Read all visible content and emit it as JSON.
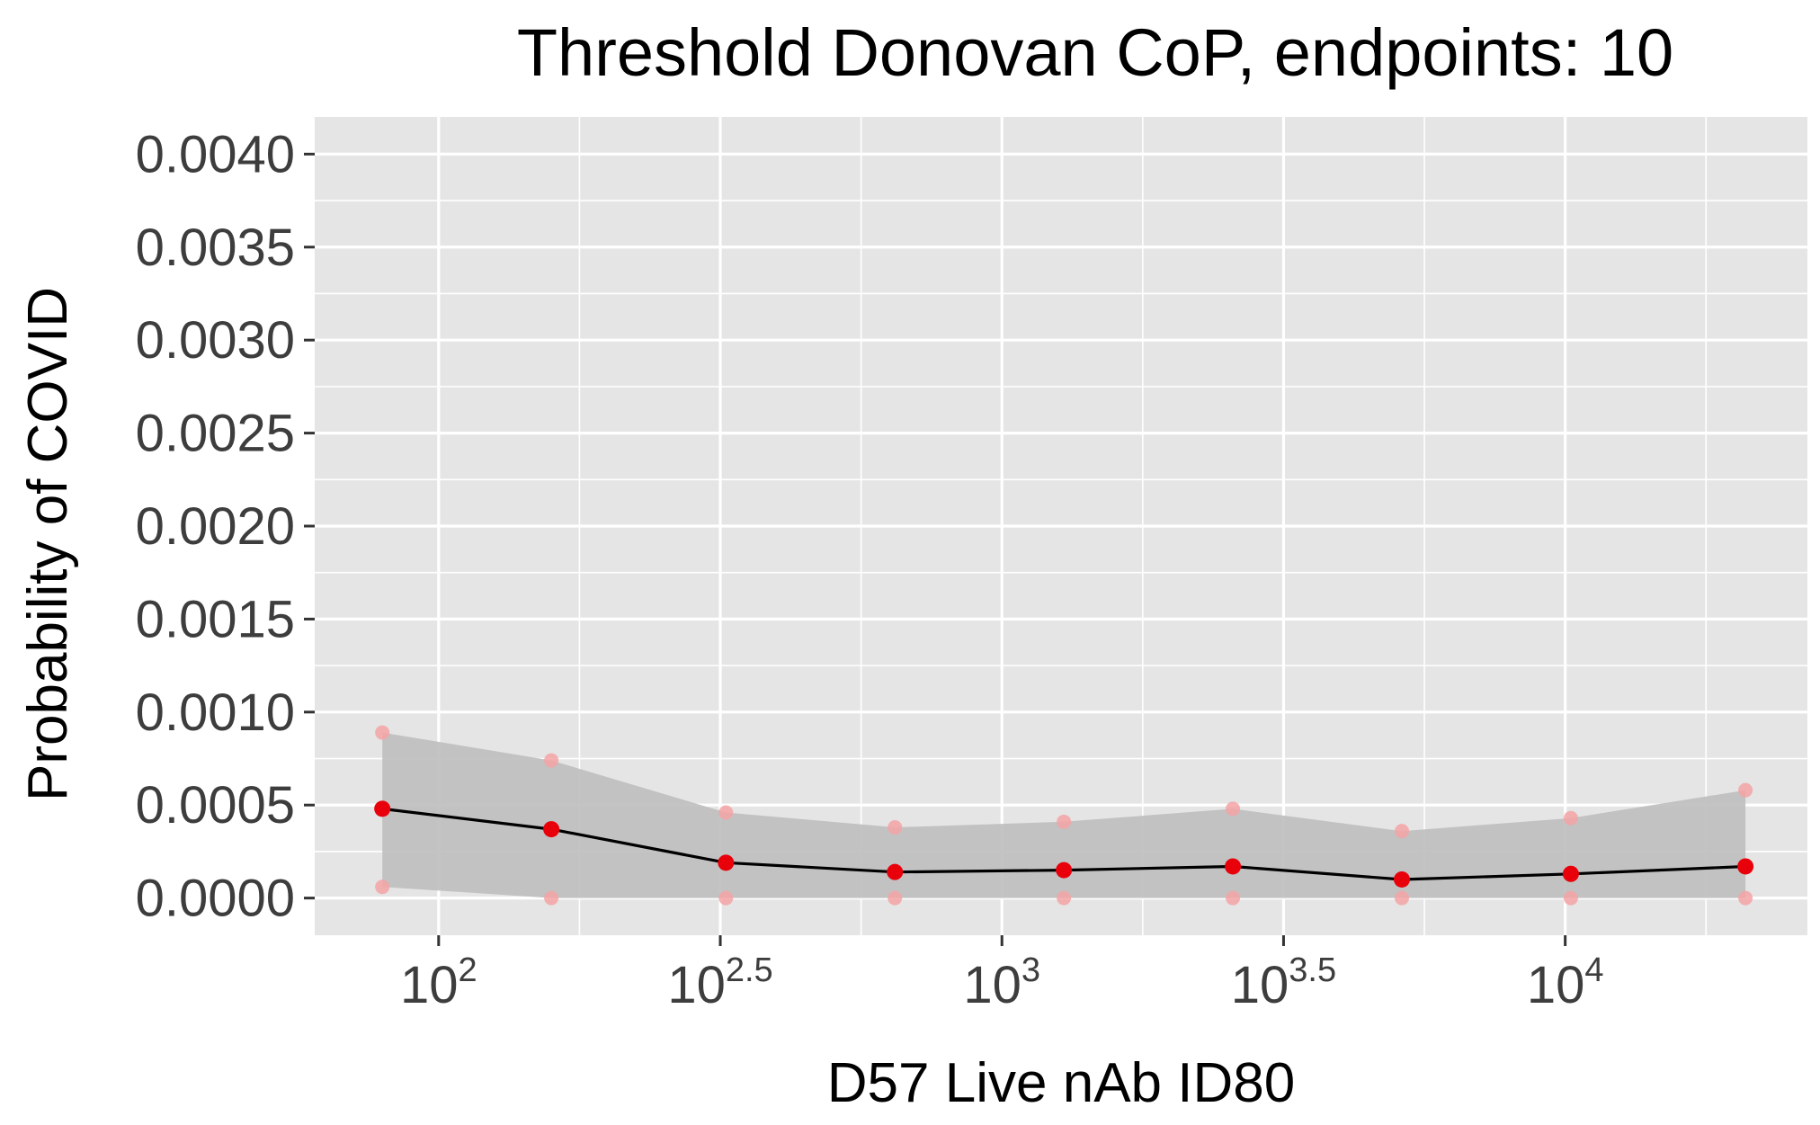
{
  "chart_data": {
    "type": "line",
    "title": "Threshold Donovan CoP, endpoints: 10",
    "xlabel": "D57 Live nAb ID80",
    "ylabel": "Probability of COVID",
    "x_scale": "log10",
    "xlim": [
      1.78,
      4.43
    ],
    "ylim": [
      -0.0002,
      0.0042
    ],
    "x_ticks": [
      {
        "value": 2.0,
        "base": "10",
        "exp": "2"
      },
      {
        "value": 2.5,
        "base": "10",
        "exp": "2.5"
      },
      {
        "value": 3.0,
        "base": "10",
        "exp": "3"
      },
      {
        "value": 3.5,
        "base": "10",
        "exp": "3.5"
      },
      {
        "value": 4.0,
        "base": "10",
        "exp": "4"
      }
    ],
    "y_ticks": [
      {
        "value": 0.0,
        "label": "0.0000"
      },
      {
        "value": 0.0005,
        "label": "0.0005"
      },
      {
        "value": 0.001,
        "label": "0.0010"
      },
      {
        "value": 0.0015,
        "label": "0.0015"
      },
      {
        "value": 0.002,
        "label": "0.0020"
      },
      {
        "value": 0.0025,
        "label": "0.0025"
      },
      {
        "value": 0.003,
        "label": "0.0030"
      },
      {
        "value": 0.0035,
        "label": "0.0035"
      },
      {
        "value": 0.004,
        "label": "0.0040"
      }
    ],
    "grid": true,
    "x_log10": [
      1.9,
      2.2,
      2.51,
      2.81,
      3.11,
      3.41,
      3.71,
      4.01,
      4.32
    ],
    "estimate": [
      0.00048,
      0.00037,
      0.00019,
      0.00014,
      0.00015,
      0.00017,
      0.0001,
      0.00013,
      0.00017
    ],
    "lower": [
      6e-05,
      0.0,
      0.0,
      0.0,
      0.0,
      0.0,
      0.0,
      0.0,
      0.0
    ],
    "upper": [
      0.00089,
      0.00074,
      0.00046,
      0.00038,
      0.00041,
      0.00048,
      0.00036,
      0.00043,
      0.00058
    ],
    "colors": {
      "panel": "#e5e5e5",
      "grid": "#ffffff",
      "band": "#bebebe",
      "line": "#000000",
      "point": "#e8000b",
      "bound_point": "#f4a3a6"
    }
  }
}
